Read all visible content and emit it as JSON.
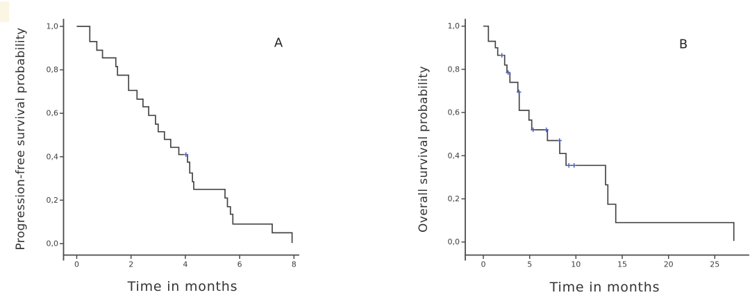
{
  "figure": {
    "background": "#ffffff",
    "colors": {
      "curve": "#454545",
      "censor": "#5363b8",
      "axis": "#4a4a4a",
      "tick_text": "#3d3d3d",
      "title_text": "#333333"
    },
    "panels": [
      {
        "letter": "A",
        "ylabel": "Progression-free survival probability",
        "xlabel": "Time in months"
      },
      {
        "letter": "B",
        "ylabel": "Overall survival probability",
        "xlabel": "Time in months"
      }
    ]
  },
  "chart_data": [
    {
      "type": "line",
      "subtype": "kaplan_meier_step",
      "panel": "A",
      "title": "",
      "xlabel": "Time in months",
      "ylabel": "Progression-free survival probability",
      "xlim": [
        0,
        8.2
      ],
      "ylim": [
        0,
        1.0
      ],
      "xticks": [
        0,
        2,
        4,
        6,
        8
      ],
      "xtick_labels": [
        "0",
        "2",
        "4",
        "6",
        "8"
      ],
      "yticks": [
        0.0,
        0.2,
        0.4,
        0.6,
        0.8,
        1.0
      ],
      "ytick_labels": [
        "0,0",
        "0,2",
        "0,4",
        "0,6",
        "0,8",
        "1,0"
      ],
      "grid": false,
      "legend": "none",
      "series": [
        {
          "name": "progression-free-survival-function",
          "color": "#454545",
          "steps": [
            [
              0,
              1.0
            ],
            [
              0.48,
              0.93
            ],
            [
              0.74,
              0.89
            ],
            [
              0.95,
              0.855
            ],
            [
              1.44,
              0.815
            ],
            [
              1.5,
              0.775
            ],
            [
              1.91,
              0.705
            ],
            [
              2.22,
              0.665
            ],
            [
              2.44,
              0.63
            ],
            [
              2.65,
              0.59
            ],
            [
              2.9,
              0.55
            ],
            [
              3.0,
              0.515
            ],
            [
              3.23,
              0.48
            ],
            [
              3.46,
              0.443
            ],
            [
              3.76,
              0.41
            ],
            [
              4.08,
              0.375
            ],
            [
              4.16,
              0.325
            ],
            [
              4.26,
              0.285
            ],
            [
              4.31,
              0.25
            ],
            [
              5.46,
              0.21
            ],
            [
              5.55,
              0.17
            ],
            [
              5.66,
              0.135
            ],
            [
              5.75,
              0.09
            ],
            [
              7.2,
              0.05
            ],
            [
              7.93,
              0.003
            ]
          ],
          "censored": [
            [
              4.02,
              0.41
            ]
          ]
        }
      ]
    },
    {
      "type": "line",
      "subtype": "kaplan_meier_step",
      "panel": "B",
      "title": "",
      "xlabel": "Time in months",
      "ylabel": "Overall survival probability",
      "xlim": [
        0,
        28.5
      ],
      "ylim": [
        0,
        1.0
      ],
      "xticks": [
        0,
        5,
        10,
        15,
        20,
        25
      ],
      "xtick_labels": [
        "0",
        "5",
        "10",
        "15",
        "20",
        "25"
      ],
      "yticks": [
        0.0,
        0.2,
        0.4,
        0.6,
        0.8,
        1.0
      ],
      "ytick_labels": [
        "0,0",
        "0,2",
        "0,4",
        "0,6",
        "0,8",
        "1,0"
      ],
      "grid": false,
      "legend": "none",
      "series": [
        {
          "name": "overall-survival-function",
          "color": "#454545",
          "steps": [
            [
              0,
              1.0
            ],
            [
              0.55,
              0.93
            ],
            [
              1.3,
              0.9
            ],
            [
              1.55,
              0.865
            ],
            [
              2.3,
              0.82
            ],
            [
              2.55,
              0.785
            ],
            [
              2.87,
              0.74
            ],
            [
              3.73,
              0.695
            ],
            [
              3.88,
              0.61
            ],
            [
              4.93,
              0.565
            ],
            [
              5.23,
              0.52
            ],
            [
              6.92,
              0.47
            ],
            [
              8.25,
              0.41
            ],
            [
              8.93,
              0.355
            ],
            [
              13.2,
              0.265
            ],
            [
              13.45,
              0.175
            ],
            [
              14.3,
              0.09
            ],
            [
              27.05,
              0.005
            ]
          ],
          "censored": [
            [
              2.0,
              0.865
            ],
            [
              2.68,
              0.785
            ],
            [
              3.85,
              0.695
            ],
            [
              5.38,
              0.52
            ],
            [
              6.8,
              0.52
            ],
            [
              8.23,
              0.47
            ],
            [
              9.23,
              0.355
            ],
            [
              9.8,
              0.355
            ]
          ]
        }
      ]
    }
  ]
}
